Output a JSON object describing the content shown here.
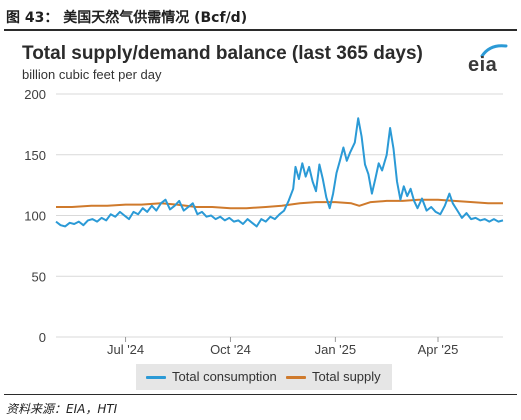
{
  "figure_label": "图 43：  美国天然气供需情况 (Bcf/d)",
  "source_note": "资料来源：EIA，HTI",
  "logo_text": "eia",
  "colors": {
    "consumption": "#2b9ad6",
    "supply": "#cf7a2c",
    "grid": "#d9d9d9",
    "axis_text": "#404040"
  },
  "chart_data": {
    "type": "line",
    "title": "Total supply/demand balance (last 365 days)",
    "subtitle": "billion cubic feet per day",
    "ylim": [
      0,
      200
    ],
    "yticks": [
      0,
      50,
      100,
      150,
      200
    ],
    "x_range": [
      "2024-05-01",
      "2025-05-28"
    ],
    "xticks": [
      {
        "label": "Jul '24",
        "date": "2024-07-01"
      },
      {
        "label": "Oct '24",
        "date": "2024-10-01"
      },
      {
        "label": "Jan '25",
        "date": "2025-01-01"
      },
      {
        "label": "Apr '25",
        "date": "2025-04-01"
      }
    ],
    "grid": true,
    "legend_position": "bottom",
    "series": [
      {
        "name": "Total consumption",
        "color": "#2b9ad6",
        "points": [
          [
            "2024-05-01",
            95
          ],
          [
            "2024-05-05",
            92
          ],
          [
            "2024-05-09",
            91
          ],
          [
            "2024-05-13",
            94
          ],
          [
            "2024-05-17",
            93
          ],
          [
            "2024-05-21",
            95
          ],
          [
            "2024-05-25",
            92
          ],
          [
            "2024-05-29",
            96
          ],
          [
            "2024-06-02",
            97
          ],
          [
            "2024-06-06",
            95
          ],
          [
            "2024-06-10",
            98
          ],
          [
            "2024-06-14",
            96
          ],
          [
            "2024-06-18",
            101
          ],
          [
            "2024-06-22",
            99
          ],
          [
            "2024-06-26",
            103
          ],
          [
            "2024-06-30",
            100
          ],
          [
            "2024-07-04",
            97
          ],
          [
            "2024-07-08",
            103
          ],
          [
            "2024-07-12",
            101
          ],
          [
            "2024-07-16",
            106
          ],
          [
            "2024-07-20",
            103
          ],
          [
            "2024-07-24",
            108
          ],
          [
            "2024-07-28",
            104
          ],
          [
            "2024-08-01",
            110
          ],
          [
            "2024-08-05",
            113
          ],
          [
            "2024-08-09",
            105
          ],
          [
            "2024-08-13",
            108
          ],
          [
            "2024-08-17",
            112
          ],
          [
            "2024-08-21",
            104
          ],
          [
            "2024-08-25",
            107
          ],
          [
            "2024-08-29",
            110
          ],
          [
            "2024-09-02",
            101
          ],
          [
            "2024-09-06",
            103
          ],
          [
            "2024-09-10",
            99
          ],
          [
            "2024-09-14",
            100
          ],
          [
            "2024-09-18",
            97
          ],
          [
            "2024-09-22",
            99
          ],
          [
            "2024-09-26",
            96
          ],
          [
            "2024-09-30",
            98
          ],
          [
            "2024-10-04",
            95
          ],
          [
            "2024-10-08",
            96
          ],
          [
            "2024-10-12",
            93
          ],
          [
            "2024-10-16",
            97
          ],
          [
            "2024-10-20",
            94
          ],
          [
            "2024-10-24",
            91
          ],
          [
            "2024-10-28",
            97
          ],
          [
            "2024-11-01",
            95
          ],
          [
            "2024-11-05",
            99
          ],
          [
            "2024-11-09",
            97
          ],
          [
            "2024-11-13",
            101
          ],
          [
            "2024-11-17",
            104
          ],
          [
            "2024-11-21",
            112
          ],
          [
            "2024-11-25",
            122
          ],
          [
            "2024-11-27",
            140
          ],
          [
            "2024-11-30",
            130
          ],
          [
            "2024-12-03",
            143
          ],
          [
            "2024-12-06",
            132
          ],
          [
            "2024-12-09",
            140
          ],
          [
            "2024-12-12",
            128
          ],
          [
            "2024-12-15",
            120
          ],
          [
            "2024-12-18",
            142
          ],
          [
            "2024-12-21",
            130
          ],
          [
            "2024-12-24",
            115
          ],
          [
            "2024-12-27",
            106
          ],
          [
            "2024-12-30",
            118
          ],
          [
            "2025-01-02",
            135
          ],
          [
            "2025-01-05",
            145
          ],
          [
            "2025-01-08",
            156
          ],
          [
            "2025-01-11",
            145
          ],
          [
            "2025-01-14",
            152
          ],
          [
            "2025-01-18",
            160
          ],
          [
            "2025-01-21",
            180
          ],
          [
            "2025-01-24",
            165
          ],
          [
            "2025-01-27",
            142
          ],
          [
            "2025-01-30",
            134
          ],
          [
            "2025-02-02",
            118
          ],
          [
            "2025-02-05",
            130
          ],
          [
            "2025-02-08",
            143
          ],
          [
            "2025-02-11",
            137
          ],
          [
            "2025-02-15",
            150
          ],
          [
            "2025-02-18",
            172
          ],
          [
            "2025-02-21",
            155
          ],
          [
            "2025-02-24",
            128
          ],
          [
            "2025-02-27",
            113
          ],
          [
            "2025-03-02",
            124
          ],
          [
            "2025-03-05",
            116
          ],
          [
            "2025-03-08",
            122
          ],
          [
            "2025-03-11",
            112
          ],
          [
            "2025-03-14",
            106
          ],
          [
            "2025-03-18",
            114
          ],
          [
            "2025-03-22",
            104
          ],
          [
            "2025-03-26",
            107
          ],
          [
            "2025-03-30",
            103
          ],
          [
            "2025-04-03",
            101
          ],
          [
            "2025-04-07",
            108
          ],
          [
            "2025-04-11",
            118
          ],
          [
            "2025-04-14",
            110
          ],
          [
            "2025-04-18",
            104
          ],
          [
            "2025-04-22",
            98
          ],
          [
            "2025-04-26",
            102
          ],
          [
            "2025-04-30",
            97
          ],
          [
            "2025-05-04",
            98
          ],
          [
            "2025-05-08",
            96
          ],
          [
            "2025-05-12",
            97
          ],
          [
            "2025-05-16",
            95
          ],
          [
            "2025-05-20",
            97
          ],
          [
            "2025-05-24",
            95
          ],
          [
            "2025-05-28",
            96
          ]
        ]
      },
      {
        "name": "Total supply",
        "color": "#cf7a2c",
        "points": [
          [
            "2024-05-01",
            107
          ],
          [
            "2024-05-15",
            107
          ],
          [
            "2024-06-01",
            108
          ],
          [
            "2024-06-15",
            108
          ],
          [
            "2024-07-01",
            109
          ],
          [
            "2024-07-15",
            109
          ],
          [
            "2024-08-01",
            110
          ],
          [
            "2024-08-15",
            109
          ],
          [
            "2024-09-01",
            107
          ],
          [
            "2024-09-15",
            107
          ],
          [
            "2024-10-01",
            106
          ],
          [
            "2024-10-15",
            106
          ],
          [
            "2024-11-01",
            107
          ],
          [
            "2024-11-15",
            108
          ],
          [
            "2024-12-01",
            110
          ],
          [
            "2024-12-15",
            111
          ],
          [
            "2025-01-01",
            111
          ],
          [
            "2025-01-15",
            110
          ],
          [
            "2025-01-22",
            108
          ],
          [
            "2025-02-01",
            111
          ],
          [
            "2025-02-15",
            112
          ],
          [
            "2025-03-01",
            112
          ],
          [
            "2025-03-15",
            113
          ],
          [
            "2025-04-01",
            113
          ],
          [
            "2025-04-15",
            112
          ],
          [
            "2025-05-01",
            111
          ],
          [
            "2025-05-15",
            110
          ],
          [
            "2025-05-28",
            110
          ]
        ]
      }
    ]
  }
}
